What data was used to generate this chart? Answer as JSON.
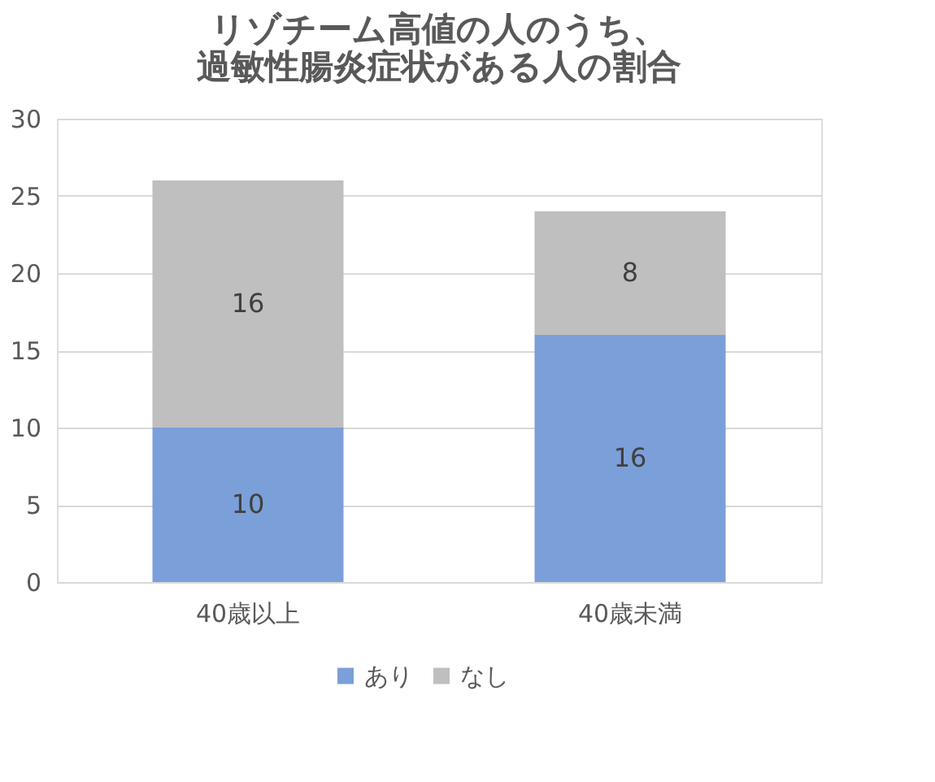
{
  "chart_data": {
    "type": "bar",
    "title": "リゾチーム高値の人のうち、過敏性腸炎症状がある人の割合",
    "categories": [
      "40歳以上",
      "40歳未満"
    ],
    "stacked": true,
    "series": [
      {
        "name": "あり",
        "color": "#7b9fd9",
        "values": [
          10,
          16
        ]
      },
      {
        "name": "なし",
        "color": "#bfbfbf",
        "values": [
          16,
          8
        ]
      }
    ],
    "ylim": [
      0,
      30
    ],
    "yticks": [
      0,
      5,
      10,
      15,
      20,
      25,
      30
    ],
    "grid": "y",
    "legend": "bottom",
    "data_labels": true
  }
}
